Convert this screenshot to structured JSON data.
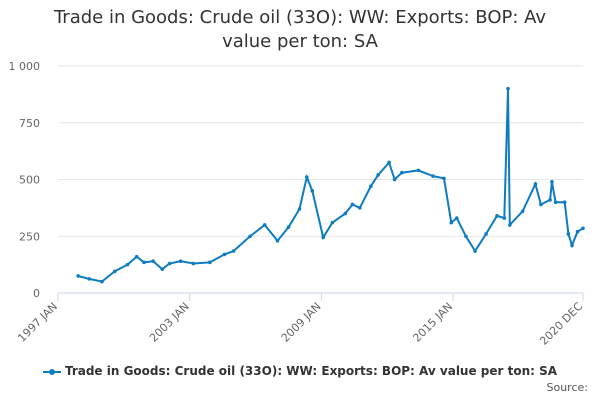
{
  "chart_data": {
    "type": "line",
    "title": "Trade in Goods: Crude oil (33O): WW: Exports: BOP: Av value per ton: SA",
    "source_label": "Source:",
    "x": [
      "1997-12",
      "1998-06",
      "1999-01",
      "1999-08",
      "2000-03",
      "2000-08",
      "2000-12",
      "2001-05",
      "2001-10",
      "2002-02",
      "2002-08",
      "2003-03",
      "2003-12",
      "2004-08",
      "2005-01",
      "2005-10",
      "2006-06",
      "2007-01",
      "2007-07",
      "2008-01",
      "2008-05",
      "2008-08",
      "2009-02",
      "2009-07",
      "2010-02",
      "2010-06",
      "2010-10",
      "2011-04",
      "2011-08",
      "2012-02",
      "2012-05",
      "2012-09",
      "2013-06",
      "2014-02",
      "2014-08",
      "2014-12",
      "2015-03",
      "2015-08",
      "2016-01",
      "2016-07",
      "2017-01",
      "2017-05",
      "2017-07",
      "2017-08",
      "2018-03",
      "2018-10",
      "2019-01",
      "2019-06",
      "2019-07",
      "2019-09",
      "2020-02",
      "2020-04",
      "2020-06",
      "2020-09",
      "2020-12"
    ],
    "series": [
      {
        "name": "Trade in Goods: Crude oil (33O): WW: Exports: BOP: Av value per ton: SA",
        "color": "#0e7cc0",
        "values": [
          75,
          62,
          50,
          95,
          125,
          160,
          135,
          140,
          105,
          130,
          140,
          130,
          135,
          170,
          185,
          250,
          300,
          230,
          290,
          370,
          510,
          450,
          245,
          310,
          350,
          390,
          375,
          470,
          520,
          575,
          500,
          530,
          540,
          515,
          505,
          310,
          330,
          250,
          185,
          260,
          340,
          330,
          900,
          300,
          360,
          480,
          390,
          410,
          490,
          400,
          400,
          260,
          210,
          270,
          285
        ]
      }
    ],
    "xlim": [
      "1997-01",
      "2020-12"
    ],
    "xticks": [
      {
        "value": "1997-01",
        "label": "1997 JAN"
      },
      {
        "value": "2003-01",
        "label": "2003 JAN"
      },
      {
        "value": "2009-01",
        "label": "2009 JAN"
      },
      {
        "value": "2015-01",
        "label": "2015 JAN"
      },
      {
        "value": "2020-12",
        "label": "2020 DEC"
      }
    ],
    "ylim": [
      0,
      1000
    ],
    "yticks": [
      0,
      250,
      500,
      750,
      {
        "value": 1000,
        "label": "1 000"
      }
    ],
    "grid": true
  }
}
